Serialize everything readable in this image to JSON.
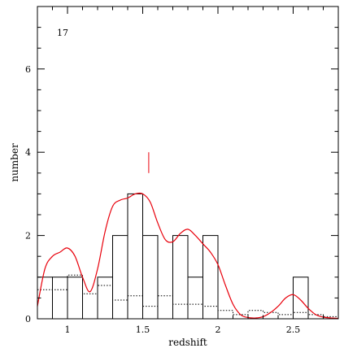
{
  "chart_data": {
    "type": "bar",
    "panel_label": "17",
    "xlabel": "redshift",
    "ylabel": "number",
    "xlim": [
      0.8,
      2.8
    ],
    "ylim": [
      0,
      7.5
    ],
    "xticks": [
      1,
      1.5,
      2,
      2.5
    ],
    "xtick_labels": [
      "1",
      "1.5",
      "2",
      "2.5"
    ],
    "yticks": [
      0,
      2,
      4,
      6
    ],
    "ytick_labels": [
      "0",
      "2",
      "4",
      "6"
    ],
    "grid": false,
    "bin_width": 0.1,
    "histogram": {
      "bin_starts": [
        0.8,
        0.9,
        1.0,
        1.1,
        1.2,
        1.3,
        1.4,
        1.5,
        1.6,
        1.7,
        1.8,
        1.9,
        2.0,
        2.1,
        2.2,
        2.3,
        2.4,
        2.5,
        2.6,
        2.7
      ],
      "values": [
        1,
        1,
        1,
        0,
        1,
        2,
        3,
        2,
        0,
        2,
        1,
        2,
        0,
        0,
        0,
        0,
        0,
        1,
        0,
        0
      ]
    },
    "expected_dotted": {
      "bin_starts": [
        0.8,
        0.9,
        1.0,
        1.1,
        1.2,
        1.3,
        1.4,
        1.5,
        1.6,
        1.7,
        1.8,
        1.9,
        2.0,
        2.1,
        2.2,
        2.3,
        2.4,
        2.5,
        2.6,
        2.7
      ],
      "values": [
        0.7,
        0.7,
        1.05,
        0.6,
        0.8,
        0.45,
        0.55,
        0.3,
        0.55,
        0.35,
        0.35,
        0.3,
        0.2,
        0.1,
        0.2,
        0.15,
        0.1,
        0.15,
        0.1,
        0.05
      ]
    },
    "smoothed_curve": {
      "x": [
        0.8,
        0.85,
        0.9,
        0.95,
        1.0,
        1.05,
        1.1,
        1.15,
        1.2,
        1.25,
        1.3,
        1.35,
        1.4,
        1.45,
        1.5,
        1.55,
        1.6,
        1.65,
        1.7,
        1.75,
        1.8,
        1.85,
        1.9,
        1.95,
        2.0,
        2.05,
        2.1,
        2.15,
        2.2,
        2.25,
        2.3,
        2.35,
        2.4,
        2.45,
        2.5,
        2.55,
        2.6,
        2.65,
        2.7,
        2.75,
        2.8
      ],
      "y": [
        0.3,
        1.2,
        1.5,
        1.6,
        1.7,
        1.5,
        1.0,
        0.65,
        1.2,
        2.1,
        2.7,
        2.85,
        2.9,
        3.0,
        3.0,
        2.8,
        2.3,
        1.9,
        1.85,
        2.05,
        2.15,
        2.0,
        1.8,
        1.6,
        1.3,
        0.8,
        0.35,
        0.1,
        0.03,
        0.02,
        0.05,
        0.15,
        0.3,
        0.5,
        0.58,
        0.45,
        0.25,
        0.1,
        0.04,
        0.02,
        0.01
      ]
    },
    "marker": {
      "x": 1.54,
      "y_range": [
        3.5,
        4.0
      ]
    },
    "colors": {
      "histogram": "#000000",
      "expected": "#000000",
      "curve": "#e8000b",
      "marker": "#e8000b"
    }
  }
}
